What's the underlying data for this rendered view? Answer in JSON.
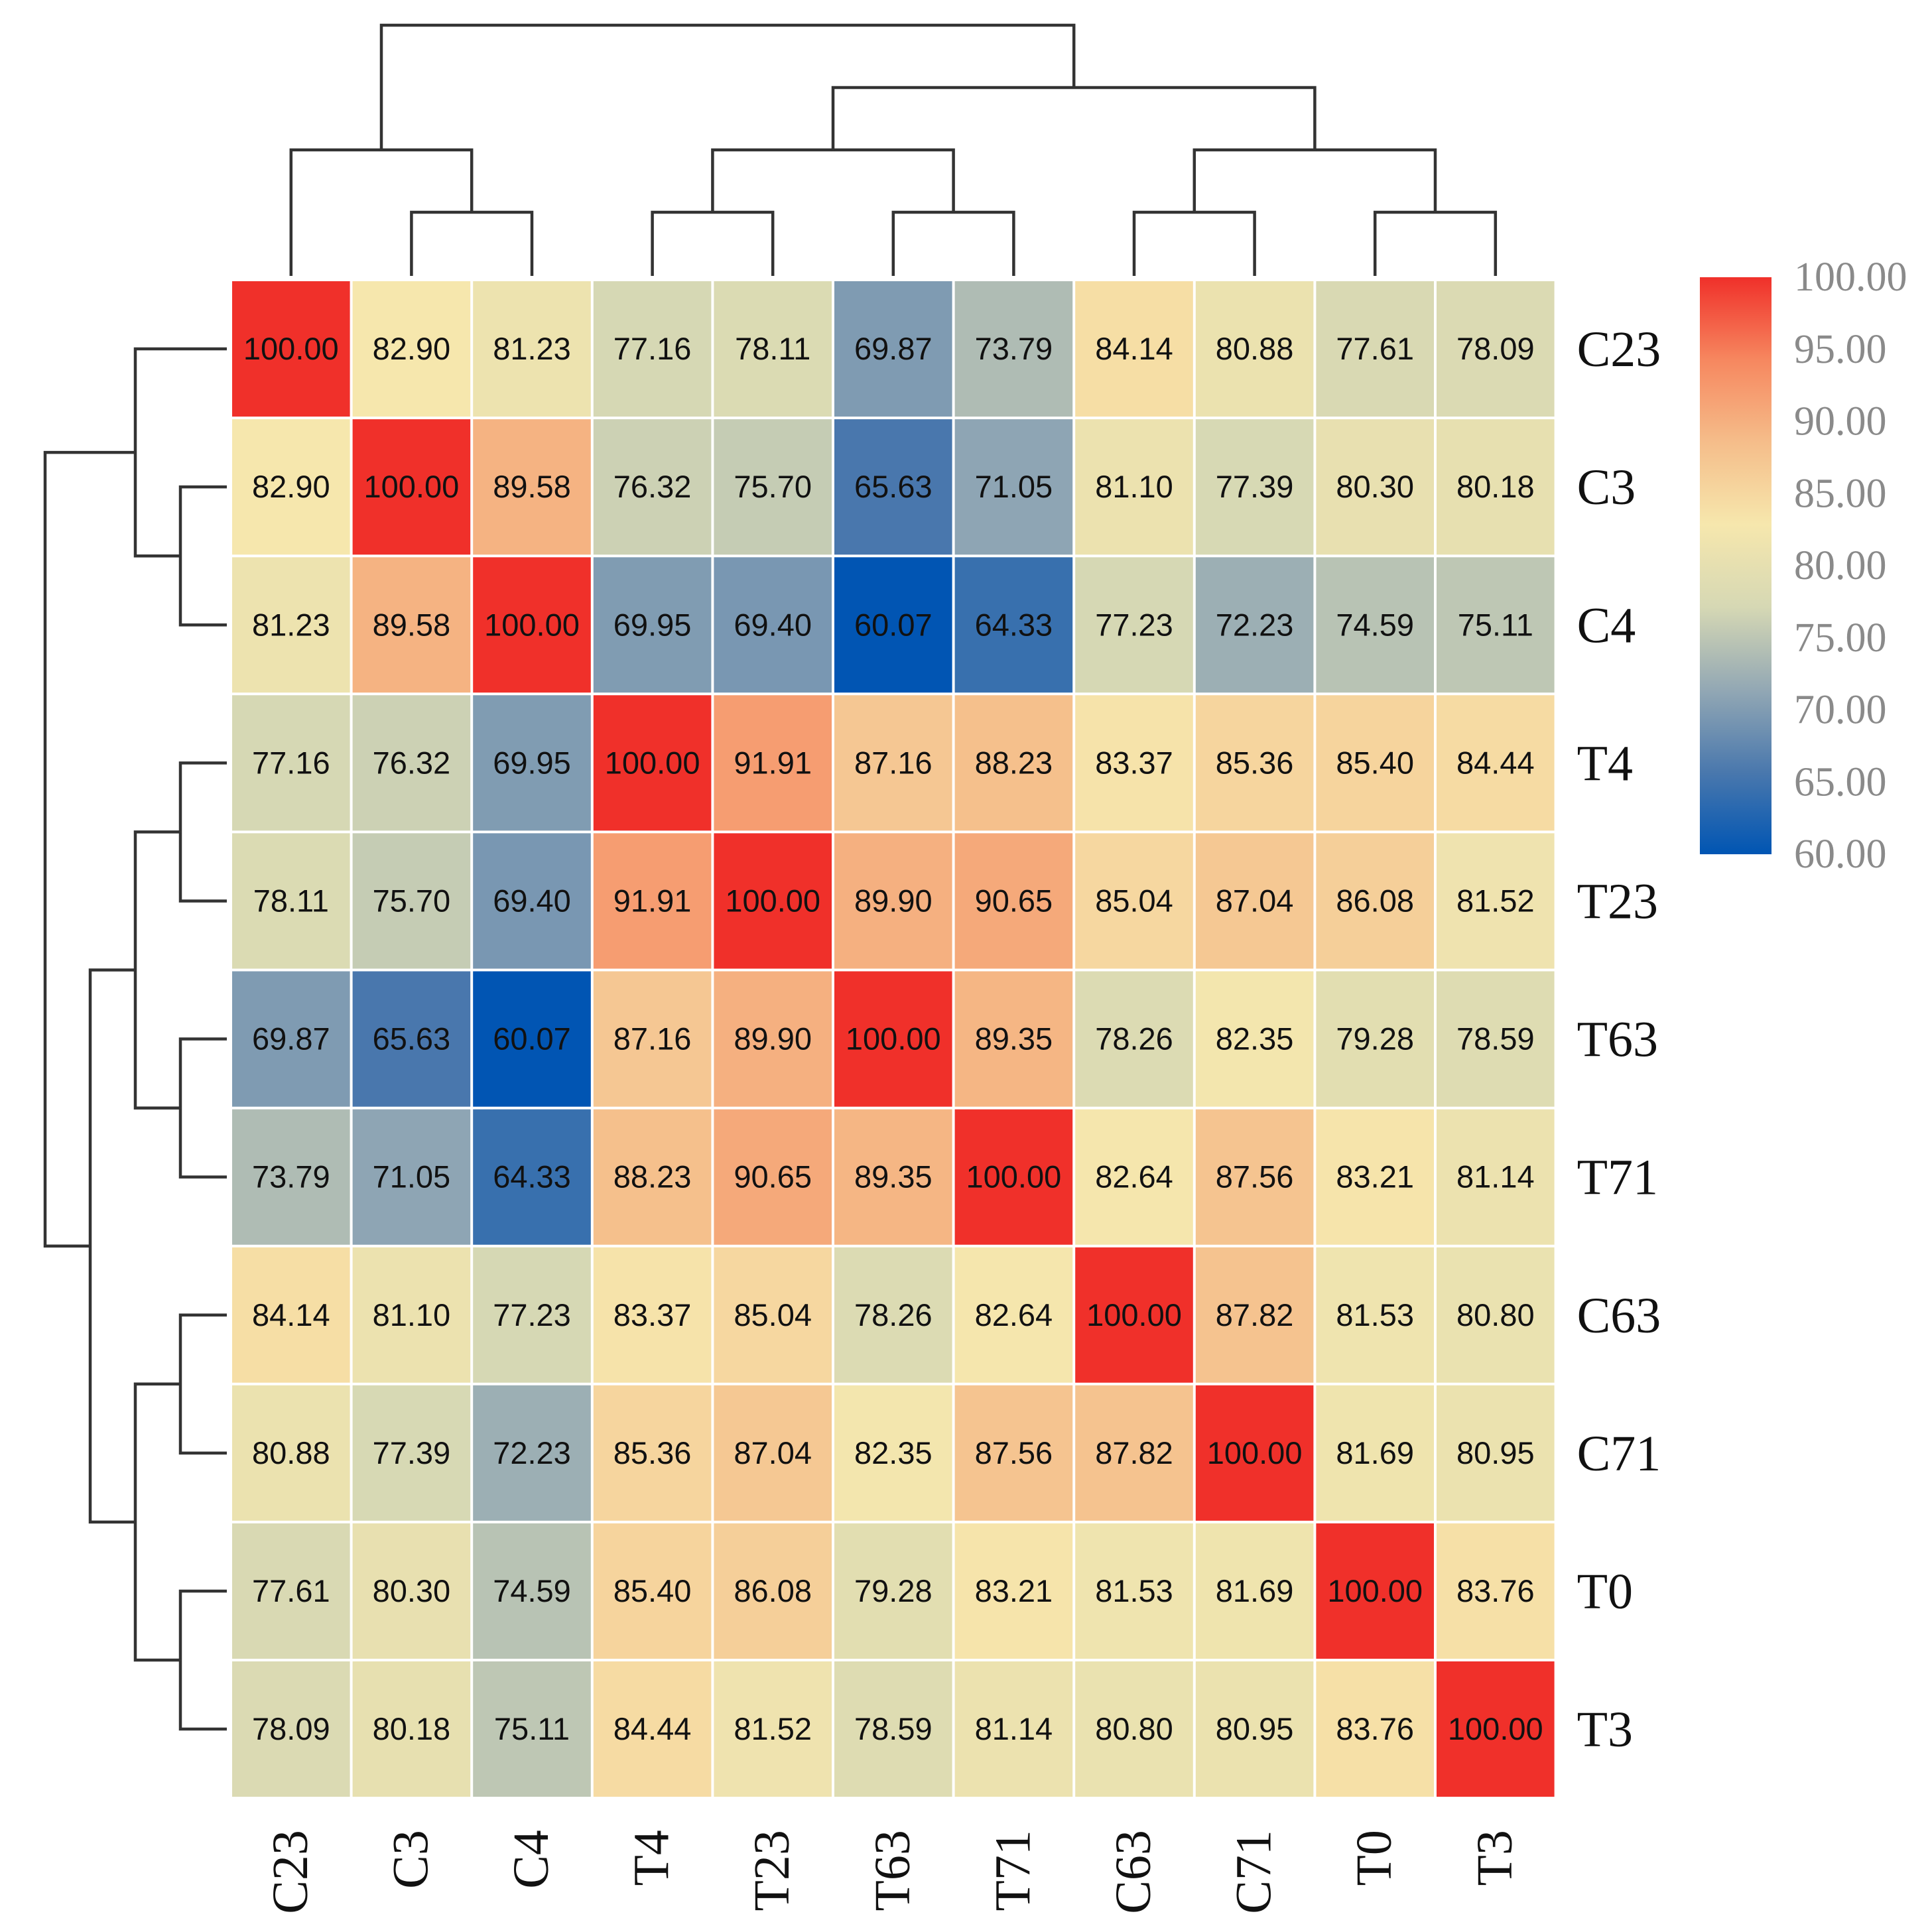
{
  "chart_data": {
    "type": "heatmap",
    "title": "",
    "xlabel": "",
    "ylabel": "",
    "labels": [
      "C23",
      "C3",
      "C4",
      "T4",
      "T23",
      "T63",
      "T71",
      "C63",
      "C71",
      "T0",
      "T3"
    ],
    "matrix": [
      [
        100.0,
        82.9,
        81.23,
        77.16,
        78.11,
        69.87,
        73.79,
        84.14,
        80.88,
        77.61,
        78.09
      ],
      [
        82.9,
        100.0,
        89.58,
        76.32,
        75.7,
        65.63,
        71.05,
        81.1,
        77.39,
        80.3,
        80.18
      ],
      [
        81.23,
        89.58,
        100.0,
        69.95,
        69.4,
        60.07,
        64.33,
        77.23,
        72.23,
        74.59,
        75.11
      ],
      [
        77.16,
        76.32,
        69.95,
        100.0,
        91.91,
        87.16,
        88.23,
        83.37,
        85.36,
        85.4,
        84.44
      ],
      [
        78.11,
        75.7,
        69.4,
        91.91,
        100.0,
        89.9,
        90.65,
        85.04,
        87.04,
        86.08,
        81.52
      ],
      [
        69.87,
        65.63,
        60.07,
        87.16,
        89.9,
        100.0,
        89.35,
        78.26,
        82.35,
        79.28,
        78.59
      ],
      [
        73.79,
        71.05,
        64.33,
        88.23,
        90.65,
        89.35,
        100.0,
        82.64,
        87.56,
        83.21,
        81.14
      ],
      [
        84.14,
        81.1,
        77.23,
        83.37,
        85.04,
        78.26,
        82.64,
        100.0,
        87.82,
        81.53,
        80.8
      ],
      [
        80.88,
        77.39,
        72.23,
        85.36,
        87.04,
        82.35,
        87.56,
        87.82,
        100.0,
        81.69,
        80.95
      ],
      [
        77.61,
        80.3,
        74.59,
        85.4,
        86.08,
        79.28,
        83.21,
        81.53,
        81.69,
        100.0,
        83.76
      ],
      [
        78.09,
        80.18,
        75.11,
        84.44,
        81.52,
        78.59,
        81.14,
        80.8,
        80.95,
        83.76,
        100.0
      ]
    ],
    "color_scale": {
      "min": 60.0,
      "max": 100.0,
      "stops": [
        "#0055b3",
        "#4a78ad",
        "#93a8b4",
        "#d6d8b4",
        "#f6e7ad",
        "#f5bd8a",
        "#f6875f",
        "#f0302a"
      ]
    },
    "legend": {
      "position": "top-right",
      "ticks": [
        "100.00",
        "95.00",
        "90.00",
        "85.00",
        "80.00",
        "75.00",
        "70.00",
        "65.00",
        "60.00"
      ]
    },
    "dendrogram": {
      "order": [
        "C23",
        "C3",
        "C4",
        "T4",
        "T23",
        "T63",
        "T71",
        "C63",
        "C71",
        "T0",
        "T3"
      ],
      "merges": [
        [
          1,
          2,
          1
        ],
        [
          0,
          11,
          2
        ],
        [
          3,
          4,
          1
        ],
        [
          5,
          6,
          1
        ],
        [
          13,
          14,
          2
        ],
        [
          7,
          8,
          1
        ],
        [
          9,
          10,
          1
        ],
        [
          16,
          17,
          2
        ],
        [
          15,
          18,
          3
        ],
        [
          12,
          19,
          4
        ]
      ]
    }
  }
}
